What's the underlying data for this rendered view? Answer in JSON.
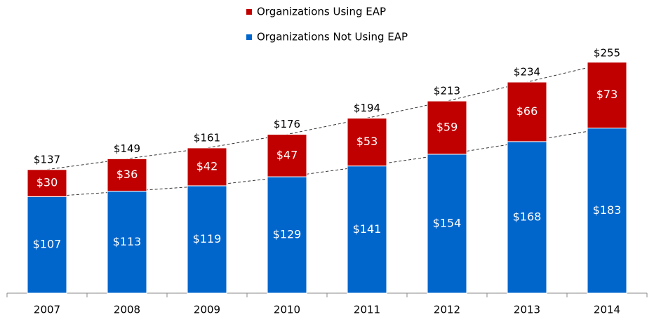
{
  "chart_data": {
    "type": "stacked_bar",
    "categories": [
      "2007",
      "2008",
      "2009",
      "2010",
      "2011",
      "2012",
      "2013",
      "2014"
    ],
    "series": [
      {
        "name": "Organizations Not Using EAP",
        "color": "#0066cc",
        "values": [
          107,
          113,
          119,
          129,
          141,
          154,
          168,
          183
        ],
        "value_labels": [
          "$107",
          "$113",
          "$119",
          "$129",
          "$141",
          "$154",
          "$168",
          "$183"
        ]
      },
      {
        "name": "Organizations Using EAP",
        "color": "#c00000",
        "values": [
          30,
          36,
          42,
          47,
          53,
          59,
          66,
          73
        ],
        "value_labels": [
          "$30",
          "$36",
          "$42",
          "$47",
          "$53",
          "$59",
          "$66",
          "$73"
        ]
      }
    ],
    "totals": [
      137,
      149,
      161,
      176,
      194,
      213,
      234,
      255
    ],
    "total_labels": [
      "$137",
      "$149",
      "$161",
      "$176",
      "$194",
      "$213",
      "$234",
      "$255"
    ]
  }
}
